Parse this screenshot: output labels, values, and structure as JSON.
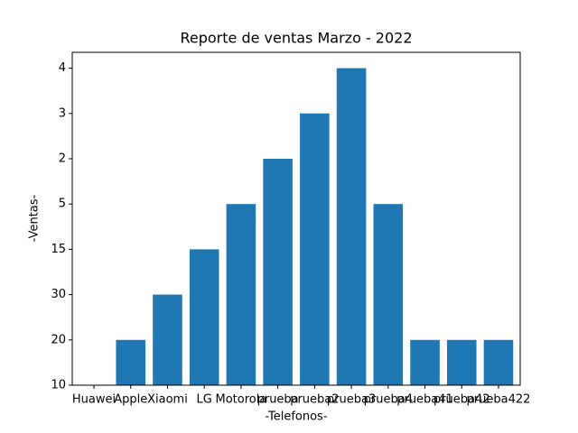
{
  "chart_data": {
    "type": "bar",
    "title": "Reporte de ventas Marzo - 2022",
    "x_label": "-Telefonos-",
    "y_label": "-Ventas-",
    "categories": [
      "Huawei",
      "Apple",
      "Xiaomi",
      "LG",
      "Motorola",
      "prueba",
      "prueba2",
      "prueba3",
      "prueba4",
      "prueba41",
      "prueba42",
      "prueba422"
    ],
    "values": [
      0,
      1,
      2,
      3,
      4,
      5,
      6,
      7,
      4,
      1,
      1,
      1
    ],
    "color": "#1f77b4",
    "ylim": [
      0,
      7.35
    ],
    "yticks": [
      {
        "value": 0,
        "label": "10"
      },
      {
        "value": 1,
        "label": "20"
      },
      {
        "value": 2,
        "label": "30"
      },
      {
        "value": 3,
        "label": "15"
      },
      {
        "value": 4,
        "label": "5"
      },
      {
        "value": 5,
        "label": "2"
      },
      {
        "value": 6,
        "label": "3"
      },
      {
        "value": 7,
        "label": "4"
      }
    ],
    "grid": false
  }
}
